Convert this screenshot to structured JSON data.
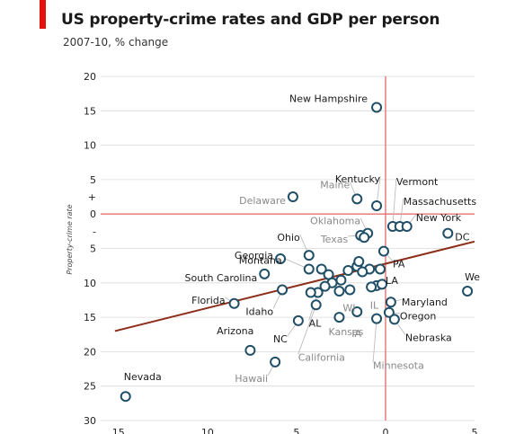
{
  "header": {
    "title": "US property-crime rates and GDP per person",
    "subtitle": "2007-10, % change"
  },
  "colors": {
    "accent": "#e3120b",
    "point_stroke": "#1f4e66",
    "trend": "#8b2e1a",
    "zero_line": "#e57373",
    "grid": "#d9d9d9",
    "label_dark": "#1a1a1a",
    "label_grey": "#8a8a8a",
    "leader": "#b5b5b5"
  },
  "chart_data": {
    "type": "scatter",
    "ylabel": "Property-crime rate",
    "xlim": [
      -16,
      5
    ],
    "ylim": [
      30,
      -20
    ],
    "y_ticks": [
      {
        "value": -20,
        "label": "20"
      },
      {
        "value": -15,
        "label": "15"
      },
      {
        "value": -10,
        "label": "10"
      },
      {
        "value": -5,
        "label": "5"
      },
      {
        "value": -2.5,
        "label": "+"
      },
      {
        "value": 0,
        "label": "0"
      },
      {
        "value": 2.5,
        "label": "-"
      },
      {
        "value": 5,
        "label": "5"
      },
      {
        "value": 10,
        "label": "10"
      },
      {
        "value": 15,
        "label": "15"
      },
      {
        "value": 20,
        "label": "20"
      },
      {
        "value": 25,
        "label": "25"
      },
      {
        "value": 30,
        "label": "30"
      }
    ],
    "x_ticks": [
      {
        "value": -15,
        "label": "15"
      },
      {
        "value": -10,
        "label": "10"
      },
      {
        "value": -5,
        "label": "5"
      },
      {
        "value": 0,
        "label": "0"
      },
      {
        "value": 5,
        "label": "5"
      }
    ],
    "grid": true,
    "zero_lines": true,
    "trend_line": {
      "x": [
        -15.2,
        5
      ],
      "y": [
        17,
        4
      ]
    },
    "points": [
      {
        "name": "New Hampshire",
        "x": -0.5,
        "y": -15.5,
        "label": "New Hampshire",
        "labeled": true,
        "tone": "dark"
      },
      {
        "name": "Kentucky",
        "x": -0.5,
        "y": -1.2,
        "label": "Kentucky",
        "labeled": true,
        "tone": "dark"
      },
      {
        "name": "Maine",
        "x": -1.6,
        "y": -2.2,
        "label": "Maine",
        "labeled": true,
        "tone": "grey"
      },
      {
        "name": "Delaware",
        "x": -5.2,
        "y": -2.5,
        "label": "Delaware",
        "labeled": true,
        "tone": "grey"
      },
      {
        "name": "Vermont",
        "x": 0.4,
        "y": 1.8,
        "label": "Vermont",
        "labeled": true,
        "tone": "dark"
      },
      {
        "name": "Massachusetts",
        "x": 0.8,
        "y": 1.8,
        "label": "Massachusetts",
        "labeled": true,
        "tone": "dark"
      },
      {
        "name": "New York",
        "x": 1.2,
        "y": 1.8,
        "label": "New York",
        "labeled": true,
        "tone": "dark"
      },
      {
        "name": "DC",
        "x": 3.5,
        "y": 2.8,
        "label": "DC",
        "labeled": true,
        "tone": "dark"
      },
      {
        "name": "West Virginia",
        "x": 4.6,
        "y": 11.2,
        "label": "We",
        "labeled": true,
        "tone": "dark"
      },
      {
        "name": "Ohio",
        "x": -4.3,
        "y": 6.0,
        "label": "Ohio",
        "labeled": true,
        "tone": "dark"
      },
      {
        "name": "Montana",
        "x": -4.3,
        "y": 8.0,
        "label": "Montana",
        "labeled": true,
        "tone": "dark"
      },
      {
        "name": "Georgia",
        "x": -5.9,
        "y": 6.5,
        "label": "Georgia",
        "labeled": true,
        "tone": "dark"
      },
      {
        "name": "South Carolina",
        "x": -6.8,
        "y": 8.7,
        "label": "South Carolina",
        "labeled": true,
        "tone": "dark"
      },
      {
        "name": "Florida",
        "x": -8.5,
        "y": 13.0,
        "label": "Florida",
        "labeled": true,
        "tone": "dark"
      },
      {
        "name": "Idaho",
        "x": -5.8,
        "y": 11.0,
        "label": "Idaho",
        "labeled": true,
        "tone": "dark"
      },
      {
        "name": "NC",
        "x": -4.9,
        "y": 15.5,
        "label": "NC",
        "labeled": true,
        "tone": "dark"
      },
      {
        "name": "Arizona",
        "x": -7.6,
        "y": 19.8,
        "label": "Arizona",
        "labeled": true,
        "tone": "dark"
      },
      {
        "name": "Hawaii",
        "x": -6.2,
        "y": 21.5,
        "label": "Hawaii",
        "labeled": true,
        "tone": "grey"
      },
      {
        "name": "Nevada",
        "x": -14.6,
        "y": 26.5,
        "label": "Nevada",
        "labeled": true,
        "tone": "dark"
      },
      {
        "name": "Oklahoma",
        "x": -1.0,
        "y": 2.8,
        "label": "Oklahoma",
        "labeled": true,
        "tone": "grey"
      },
      {
        "name": "Texas",
        "x": -1.4,
        "y": 3.1,
        "label": "Texas",
        "labeled": true,
        "tone": "grey"
      },
      {
        "name": "PA",
        "x": -0.1,
        "y": 5.4,
        "label": "PA",
        "labeled": true,
        "tone": "dark"
      },
      {
        "name": "LA",
        "x": -0.5,
        "y": 10.4,
        "label": "LA",
        "labeled": true,
        "tone": "dark"
      },
      {
        "name": "Maryland",
        "x": 0.3,
        "y": 12.8,
        "label": "Maryland",
        "labeled": true,
        "tone": "dark"
      },
      {
        "name": "Oregon",
        "x": 0.2,
        "y": 14.3,
        "label": "Oregon",
        "labeled": true,
        "tone": "dark"
      },
      {
        "name": "Nebraska",
        "x": 0.5,
        "y": 15.3,
        "label": "Nebraska",
        "labeled": true,
        "tone": "dark"
      },
      {
        "name": "Minnesota",
        "x": -0.5,
        "y": 15.2,
        "label": "Minnesota",
        "labeled": true,
        "tone": "grey"
      },
      {
        "name": "IL",
        "x": -0.8,
        "y": 10.6,
        "label": "IL",
        "labeled": true,
        "tone": "grey"
      },
      {
        "name": "WI",
        "x": -2.0,
        "y": 11.0,
        "label": "WI",
        "labeled": true,
        "tone": "grey"
      },
      {
        "name": "IA",
        "x": -1.6,
        "y": 14.2,
        "label": "IA",
        "labeled": true,
        "tone": "grey"
      },
      {
        "name": "Kansas",
        "x": -2.6,
        "y": 15.0,
        "label": "Kansas",
        "labeled": true,
        "tone": "grey"
      },
      {
        "name": "AL",
        "x": -3.8,
        "y": 11.4,
        "label": "AL",
        "labeled": true,
        "tone": "dark"
      },
      {
        "name": "California",
        "x": -3.9,
        "y": 13.2,
        "label": "California",
        "labeled": true,
        "tone": "grey"
      },
      {
        "name": "p34",
        "x": -3.6,
        "y": 8.0,
        "label": "",
        "labeled": false
      },
      {
        "name": "p35",
        "x": -3.2,
        "y": 8.8,
        "label": "",
        "labeled": false
      },
      {
        "name": "p36",
        "x": -3.0,
        "y": 10.0,
        "label": "",
        "labeled": false
      },
      {
        "name": "p37",
        "x": -3.4,
        "y": 10.5,
        "label": "",
        "labeled": false
      },
      {
        "name": "p38",
        "x": -2.5,
        "y": 9.6,
        "label": "",
        "labeled": false
      },
      {
        "name": "p39",
        "x": -2.1,
        "y": 8.2,
        "label": "",
        "labeled": false
      },
      {
        "name": "p40",
        "x": -1.6,
        "y": 7.6,
        "label": "",
        "labeled": false
      },
      {
        "name": "p41",
        "x": -1.5,
        "y": 6.9,
        "label": "",
        "labeled": false
      },
      {
        "name": "p42",
        "x": -0.9,
        "y": 8.0,
        "label": "",
        "labeled": false
      },
      {
        "name": "p43",
        "x": -0.3,
        "y": 8.0,
        "label": "",
        "labeled": false
      },
      {
        "name": "p44",
        "x": -0.2,
        "y": 10.2,
        "label": "",
        "labeled": false
      },
      {
        "name": "p45",
        "x": -2.6,
        "y": 11.2,
        "label": "",
        "labeled": false
      },
      {
        "name": "p46",
        "x": -4.2,
        "y": 11.4,
        "label": "",
        "labeled": false
      },
      {
        "name": "p47",
        "x": -1.3,
        "y": 8.4,
        "label": "",
        "labeled": false
      },
      {
        "name": "p48",
        "x": -1.2,
        "y": 3.4,
        "label": "",
        "labeled": false
      }
    ]
  }
}
